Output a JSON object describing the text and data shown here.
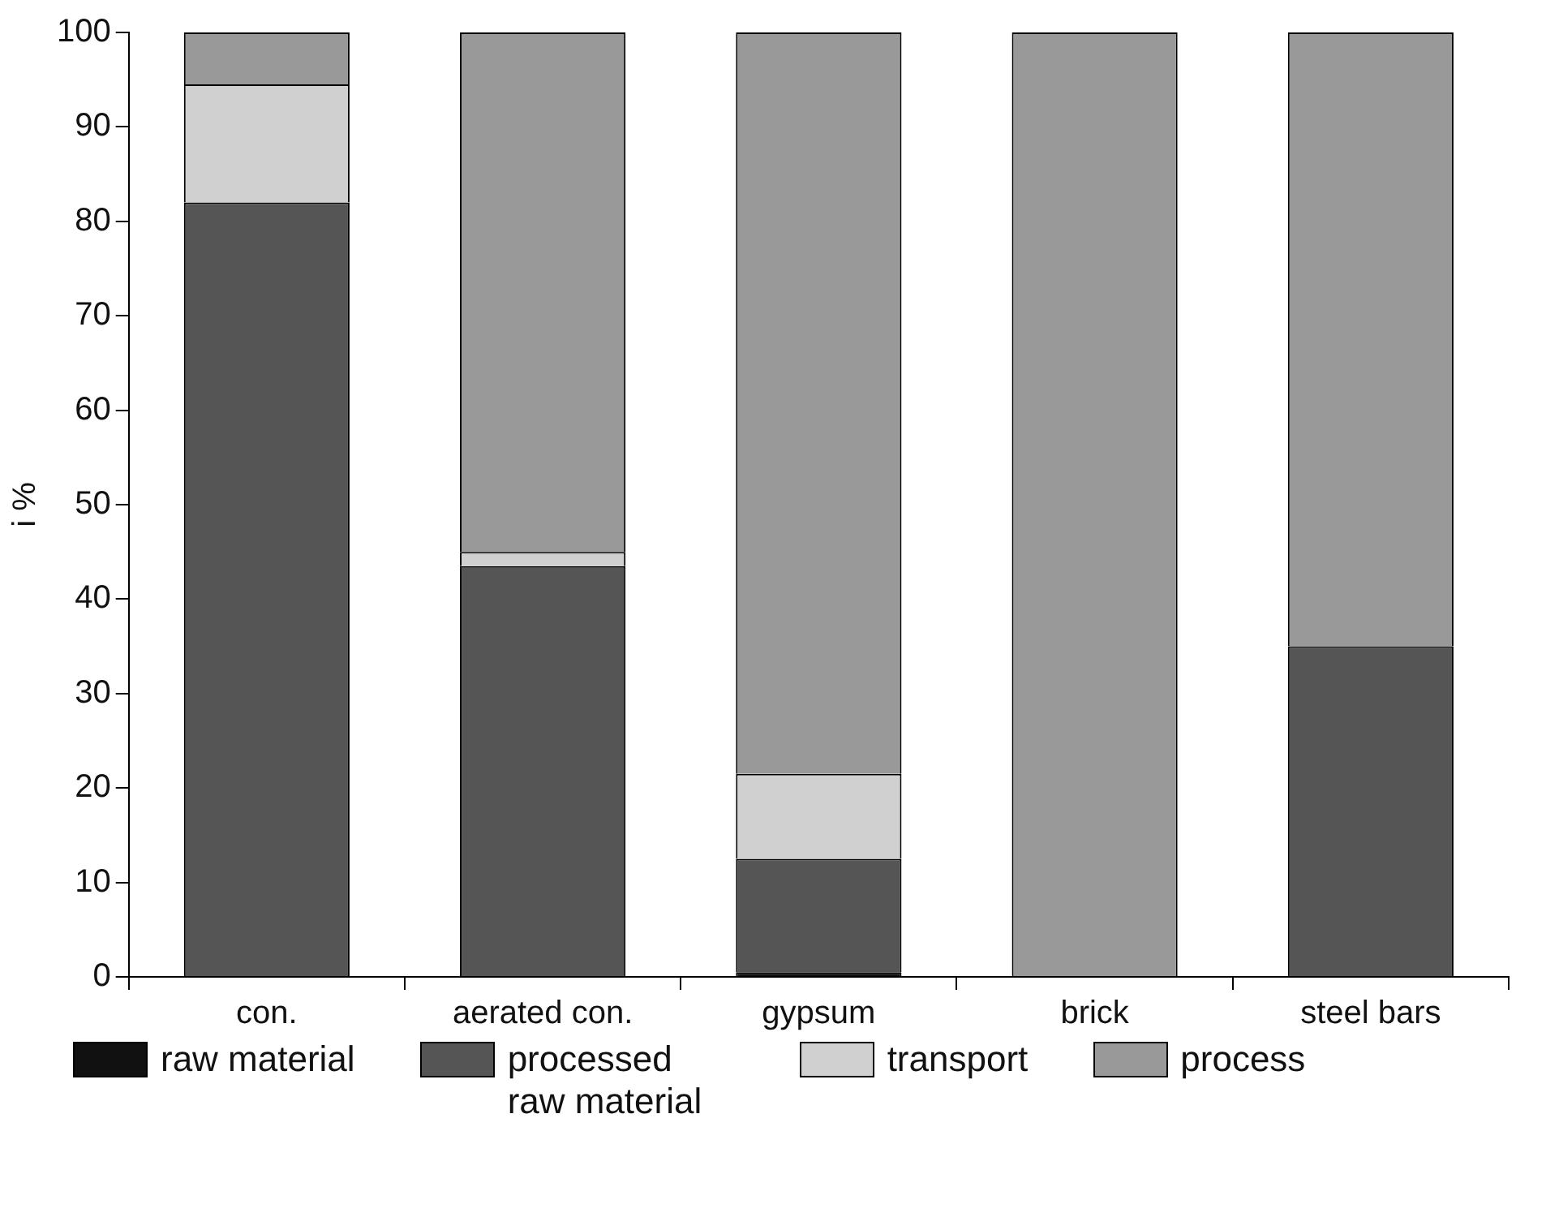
{
  "chart_data": {
    "type": "bar",
    "stacked": true,
    "ylabel": "i %",
    "categories": [
      "con.",
      "aerated con.",
      "gypsum",
      "brick",
      "steel bars"
    ],
    "ylim": [
      0,
      100
    ],
    "yticks": [
      0,
      10,
      20,
      30,
      40,
      50,
      60,
      70,
      80,
      90,
      100
    ],
    "grid": false,
    "legend": "bottom",
    "series": [
      {
        "name": "raw material",
        "color": "#111111",
        "values": [
          0,
          0,
          0.5,
          0,
          0
        ]
      },
      {
        "name": "processed raw material",
        "color": "#555555",
        "values": [
          82,
          43.5,
          12,
          0,
          35
        ]
      },
      {
        "name": "transport",
        "color": "#d0d0d0",
        "values": [
          12.5,
          1.5,
          9,
          0,
          0
        ]
      },
      {
        "name": "process",
        "color": "#999999",
        "values": [
          5.5,
          55,
          78.5,
          100,
          65
        ]
      }
    ]
  }
}
